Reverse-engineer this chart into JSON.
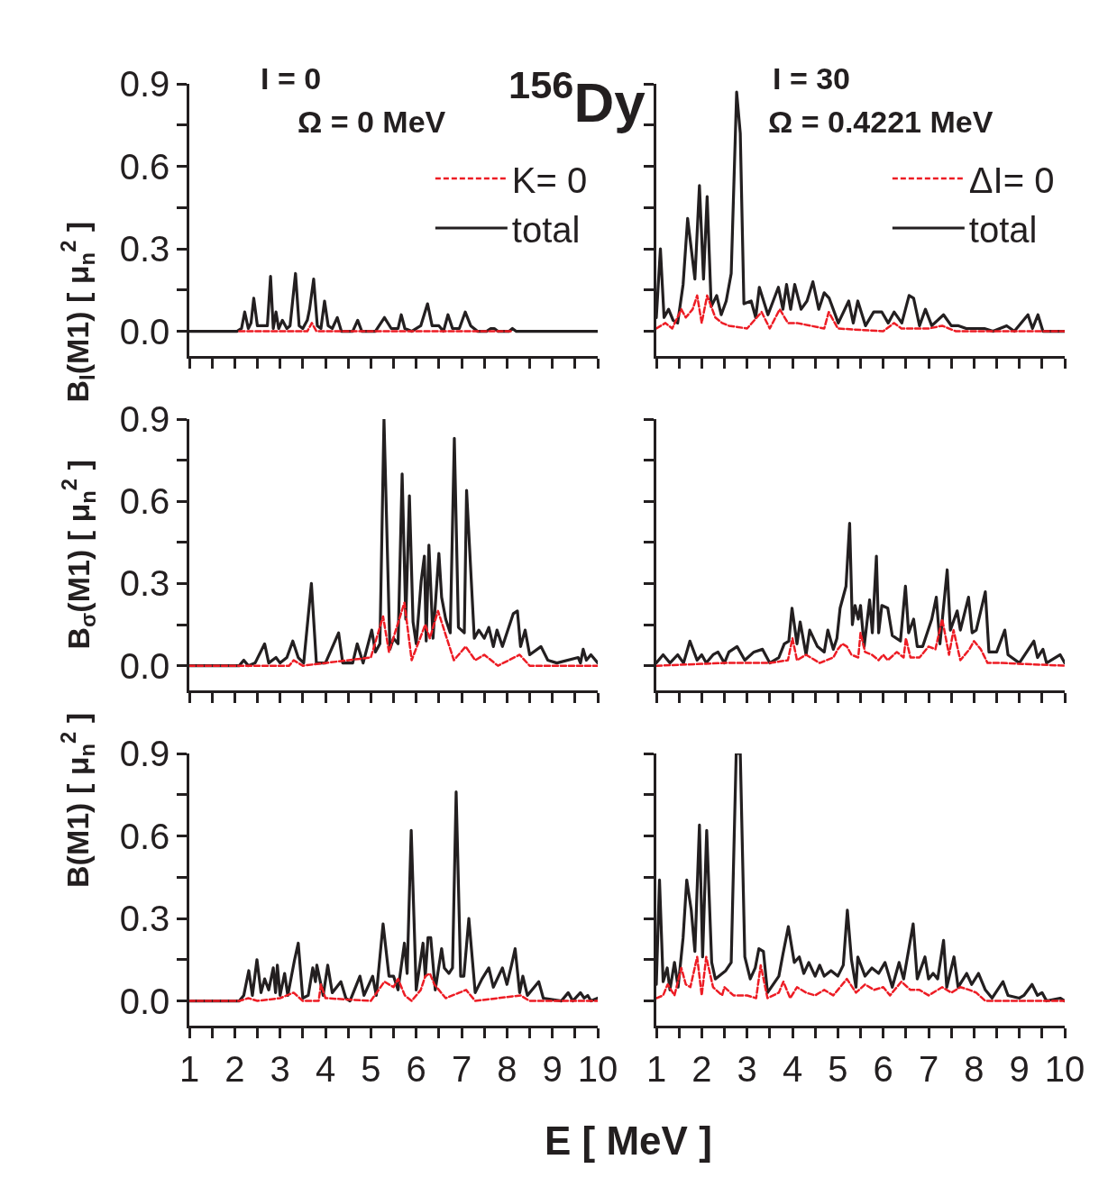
{
  "chart_data": [
    {
      "type": "line",
      "title": "$^{156}$Dy",
      "ylabel": "B$_{I}$(M1) [ μ$_{n}$$^{2}$ ]",
      "annotations": [
        "I = 0",
        "Ω = 0 MeV"
      ],
      "legend": "top right",
      "tick_labels": "y",
      "xlim": [
        1,
        10
      ],
      "xticks": [
        1,
        {
          "value": 1.5,
          "label": null
        },
        2,
        {
          "value": 2.5,
          "label": null
        },
        3,
        {
          "value": 3.5,
          "label": null
        },
        4,
        {
          "value": 4.5,
          "label": null
        },
        5,
        {
          "value": 5.5,
          "label": null
        },
        6,
        {
          "value": 6.5,
          "label": null
        },
        7,
        {
          "value": 7.5,
          "label": null
        },
        8,
        {
          "value": 8.5,
          "label": null
        },
        9,
        {
          "value": 9.5,
          "label": null
        },
        10
      ],
      "ylim": [
        -0.09,
        0.9
      ],
      "yticks": [
        {
          "value": 0,
          "label": "0.0"
        },
        {
          "value": 0.15,
          "label": null
        },
        0.3,
        {
          "value": 0.45,
          "label": null
        },
        0.6,
        {
          "value": 0.75,
          "label": null
        },
        0.9
      ],
      "series": [
        {
          "name": "K= 0",
          "color": "#ed1c24",
          "line_style": "dashed",
          "x": [
            2.1,
            3.6,
            3.7,
            3.8,
            8.1
          ],
          "values": [
            0,
            0,
            0.03,
            0,
            0
          ]
        },
        {
          "name": "total",
          "color": "#231f20",
          "line_style": "solid",
          "x": [
            1,
            2.05,
            2.15,
            2.22,
            2.3,
            2.36,
            2.42,
            2.5,
            2.6,
            2.72,
            2.79,
            2.85,
            2.91,
            2.97,
            3.05,
            3.15,
            3.22,
            3.34,
            3.42,
            3.5,
            3.6,
            3.65,
            3.74,
            3.82,
            3.9,
            3.98,
            4.06,
            4.15,
            4.26,
            4.35,
            4.6,
            4.71,
            4.8,
            5.1,
            5.3,
            5.45,
            5.6,
            5.67,
            5.75,
            5.9,
            6.1,
            6.25,
            6.35,
            6.5,
            6.6,
            6.7,
            6.8,
            6.95,
            7.08,
            7.2,
            7.35,
            7.55,
            7.65,
            7.72,
            7.8,
            8.05,
            8.12,
            8.2,
            10
          ],
          "values": [
            0,
            0,
            0.01,
            0.07,
            0.01,
            0.03,
            0.12,
            0.02,
            0.02,
            0.02,
            0.2,
            0.01,
            0.07,
            0.01,
            0.04,
            0.01,
            0.02,
            0.21,
            0.02,
            0.01,
            0.04,
            0.08,
            0.19,
            0.02,
            0.01,
            0.11,
            0.02,
            0.01,
            0.05,
            0,
            0,
            0.04,
            0,
            0,
            0.05,
            0.01,
            0.01,
            0.06,
            0.01,
            0,
            0.02,
            0.1,
            0.02,
            0.02,
            0,
            0.06,
            0.01,
            0.01,
            0.07,
            0.02,
            0,
            0,
            0.01,
            0.01,
            0,
            0,
            0.01,
            0,
            0
          ]
        }
      ]
    },
    {
      "type": "line",
      "annotations": [
        "I = 30",
        "Ω = 0.4221 MeV"
      ],
      "legend": "top right",
      "tick_labels": false,
      "xlim": [
        1,
        10
      ],
      "xticks": [
        1,
        {
          "value": 1.5,
          "label": null
        },
        2,
        {
          "value": 2.5,
          "label": null
        },
        3,
        {
          "value": 3.5,
          "label": null
        },
        4,
        {
          "value": 4.5,
          "label": null
        },
        5,
        {
          "value": 5.5,
          "label": null
        },
        6,
        {
          "value": 6.5,
          "label": null
        },
        7,
        {
          "value": 7.5,
          "label": null
        },
        8,
        {
          "value": 8.5,
          "label": null
        },
        9,
        {
          "value": 9.5,
          "label": null
        },
        10
      ],
      "ylim": [
        -0.09,
        0.9
      ],
      "yticks": [
        {
          "value": 0,
          "label": null
        },
        {
          "value": 0.15,
          "label": null
        },
        {
          "value": 0.3,
          "label": null
        },
        {
          "value": 0.45,
          "label": null
        },
        {
          "value": 0.6,
          "label": null
        },
        {
          "value": 0.75,
          "label": null
        },
        {
          "value": 0.9,
          "label": null
        }
      ],
      "series": [
        {
          "name": "ΔI= 0",
          "color": "#ed1c24",
          "line_style": "dashed",
          "x": [
            1,
            1.2,
            1.35,
            1.55,
            1.65,
            1.8,
            1.9,
            2.0,
            2.12,
            2.3,
            2.45,
            2.6,
            3.0,
            3.32,
            3.5,
            3.72,
            3.9,
            4.1,
            4.7,
            4.8,
            5.0,
            6.0,
            6.24,
            6.4,
            7.0,
            7.3,
            7.6,
            10
          ],
          "values": [
            0.01,
            0.03,
            0.01,
            0.08,
            0.05,
            0.08,
            0.13,
            0.03,
            0.13,
            0.05,
            0.03,
            0.02,
            0.01,
            0.07,
            0.01,
            0.08,
            0.03,
            0.03,
            0.01,
            0.07,
            0.01,
            0,
            0.03,
            0.01,
            0.01,
            0.02,
            0,
            0
          ]
        },
        {
          "name": "total",
          "color": "#231f20",
          "line_style": "solid",
          "x": [
            1,
            1.09,
            1.17,
            1.27,
            1.37,
            1.47,
            1.59,
            1.69,
            1.77,
            1.85,
            1.95,
            2.04,
            2.12,
            2.21,
            2.33,
            2.43,
            2.54,
            2.65,
            2.77,
            2.85,
            2.93,
            3.09,
            3.19,
            3.27,
            3.46,
            3.69,
            3.79,
            3.87,
            3.96,
            4.05,
            4.19,
            4.32,
            4.45,
            4.58,
            4.7,
            4.81,
            5.01,
            5.24,
            5.34,
            5.44,
            5.61,
            5.79,
            5.97,
            6.11,
            6.24,
            6.41,
            6.57,
            6.67,
            6.8,
            6.93,
            7.07,
            7.33,
            7.5,
            7.66,
            7.83,
            8.23,
            8.42,
            8.72,
            8.89,
            9.19,
            9.29,
            9.41,
            9.52,
            10
          ],
          "values": [
            0.05,
            0.3,
            0.05,
            0.08,
            0.04,
            0.03,
            0.17,
            0.41,
            0.3,
            0.19,
            0.53,
            0.19,
            0.49,
            0.09,
            0.13,
            0.06,
            0.11,
            0.21,
            0.87,
            0.72,
            0.1,
            0.11,
            0.05,
            0.16,
            0.06,
            0.16,
            0.08,
            0.17,
            0.08,
            0.17,
            0.08,
            0.11,
            0.18,
            0.08,
            0.14,
            0.12,
            0.03,
            0.11,
            0.03,
            0.11,
            0.02,
            0.07,
            0.07,
            0.03,
            0.07,
            0.03,
            0.13,
            0.12,
            0.02,
            0.08,
            0.02,
            0.06,
            0.02,
            0.02,
            0.01,
            0.01,
            0,
            0.02,
            0,
            0.06,
            0.01,
            0.06,
            0,
            0
          ]
        }
      ]
    },
    {
      "type": "line",
      "ylabel": "B$_{σ}$(M1) [ μ$_{n}$$^{2}$ ]",
      "tick_labels": "y",
      "xlim": [
        1,
        10
      ],
      "xticks": [
        1,
        {
          "value": 1.5,
          "label": null
        },
        2,
        {
          "value": 2.5,
          "label": null
        },
        3,
        {
          "value": 3.5,
          "label": null
        },
        4,
        {
          "value": 4.5,
          "label": null
        },
        5,
        {
          "value": 5.5,
          "label": null
        },
        6,
        {
          "value": 6.5,
          "label": null
        },
        7,
        {
          "value": 7.5,
          "label": null
        },
        8,
        {
          "value": 8.5,
          "label": null
        },
        9,
        {
          "value": 9.5,
          "label": null
        },
        10
      ],
      "ylim": [
        -0.09,
        0.9
      ],
      "yticks": [
        {
          "value": 0,
          "label": "0.0"
        },
        {
          "value": 0.15,
          "label": null
        },
        0.3,
        {
          "value": 0.45,
          "label": null
        },
        0.6,
        {
          "value": 0.75,
          "label": null
        },
        0.9
      ],
      "series": [
        {
          "color": "#ed1c24",
          "line_style": "dashed",
          "x": [
            1,
            3.2,
            3.3,
            3.5,
            5.0,
            5.27,
            5.4,
            5.74,
            5.9,
            6.2,
            6.3,
            6.48,
            6.83,
            7.09,
            7.3,
            7.5,
            7.8,
            8.28,
            8.5,
            10
          ],
          "values": [
            0,
            0,
            0.02,
            0,
            0.03,
            0.18,
            0.05,
            0.23,
            0.02,
            0.15,
            0.1,
            0.2,
            0.02,
            0.07,
            0.02,
            0.04,
            0,
            0.04,
            0,
            0
          ]
        },
        {
          "color": "#231f20",
          "line_style": "solid",
          "x": [
            1,
            2.1,
            2.2,
            2.3,
            2.45,
            2.66,
            2.75,
            2.91,
            3.0,
            3.15,
            3.28,
            3.4,
            3.52,
            3.69,
            3.8,
            4.0,
            4.29,
            4.38,
            4.6,
            4.7,
            4.83,
            5.02,
            5.1,
            5.2,
            5.29,
            5.42,
            5.5,
            5.6,
            5.69,
            5.77,
            5.85,
            5.93,
            6.0,
            6.11,
            6.18,
            6.22,
            6.28,
            6.37,
            6.5,
            6.56,
            6.65,
            6.75,
            6.84,
            6.93,
            7.06,
            7.11,
            7.28,
            7.38,
            7.5,
            7.6,
            7.7,
            7.78,
            7.9,
            8.14,
            8.23,
            8.3,
            8.4,
            8.5,
            8.75,
            8.9,
            9.1,
            9.57,
            9.62,
            9.68,
            9.75,
            9.85,
            10
          ],
          "values": [
            0,
            0,
            0.02,
            0,
            0.01,
            0.08,
            0.01,
            0.03,
            0.01,
            0.03,
            0.09,
            0.03,
            0.01,
            0.3,
            0.01,
            0.01,
            0.12,
            0.01,
            0.01,
            0.08,
            0.01,
            0.13,
            0.05,
            0.08,
            0.9,
            0.06,
            0.1,
            0.08,
            0.7,
            0.17,
            0.62,
            0.16,
            0.08,
            0.31,
            0.4,
            0.09,
            0.44,
            0.1,
            0.41,
            0.25,
            0.17,
            0.12,
            0.83,
            0.14,
            0.12,
            0.64,
            0.1,
            0.13,
            0.1,
            0.14,
            0.07,
            0.13,
            0.07,
            0.19,
            0.2,
            0.07,
            0.13,
            0.04,
            0.07,
            0.02,
            0.01,
            0.03,
            0.01,
            0.06,
            0.02,
            0.04,
            0.01
          ]
        }
      ]
    },
    {
      "type": "line",
      "tick_labels": false,
      "xlim": [
        1,
        10
      ],
      "xticks": [
        1,
        {
          "value": 1.5,
          "label": null
        },
        2,
        {
          "value": 2.5,
          "label": null
        },
        3,
        {
          "value": 3.5,
          "label": null
        },
        4,
        {
          "value": 4.5,
          "label": null
        },
        5,
        {
          "value": 5.5,
          "label": null
        },
        6,
        {
          "value": 6.5,
          "label": null
        },
        7,
        {
          "value": 7.5,
          "label": null
        },
        8,
        {
          "value": 8.5,
          "label": null
        },
        9,
        {
          "value": 9.5,
          "label": null
        },
        10
      ],
      "ylim": [
        -0.09,
        0.9
      ],
      "yticks": [
        {
          "value": 0,
          "label": null
        },
        {
          "value": 0.15,
          "label": null
        },
        {
          "value": 0.3,
          "label": null
        },
        {
          "value": 0.45,
          "label": null
        },
        {
          "value": 0.6,
          "label": null
        },
        {
          "value": 0.75,
          "label": null
        },
        {
          "value": 0.9,
          "label": null
        }
      ],
      "series": [
        {
          "color": "#ed1c24",
          "line_style": "dashed",
          "x": [
            1,
            2.5,
            3.5,
            3.9,
            4.0,
            4.1,
            4.3,
            4.6,
            4.9,
            5.0,
            5.1,
            5.2,
            5.3,
            5.45,
            5.5,
            5.6,
            5.75,
            5.9,
            6.0,
            6.1,
            6.3,
            6.45,
            6.5,
            6.6,
            6.8,
            7.0,
            7.15,
            7.3,
            7.45,
            7.55,
            7.7,
            7.9,
            8.0,
            8.15,
            8.3,
            8.6,
            10
          ],
          "values": [
            0,
            0.01,
            0.01,
            0.02,
            0.1,
            0.02,
            0.04,
            0.01,
            0.03,
            0.06,
            0.08,
            0.07,
            0.04,
            0.03,
            0.12,
            0.05,
            0.04,
            0.02,
            0.04,
            0.02,
            0.05,
            0.03,
            0.1,
            0.03,
            0.03,
            0.07,
            0.06,
            0.17,
            0.04,
            0.13,
            0.02,
            0.06,
            0.09,
            0.06,
            0.01,
            0.01,
            0
          ]
        },
        {
          "color": "#231f20",
          "line_style": "solid",
          "x": [
            1,
            1.15,
            1.3,
            1.47,
            1.6,
            1.74,
            1.9,
            2.0,
            2.1,
            2.25,
            2.36,
            2.5,
            2.6,
            2.78,
            2.95,
            3.15,
            3.34,
            3.5,
            3.7,
            3.82,
            3.92,
            3.99,
            4.1,
            4.17,
            4.3,
            4.38,
            4.55,
            4.7,
            4.78,
            4.9,
            4.98,
            5.05,
            5.18,
            5.26,
            5.32,
            5.38,
            5.45,
            5.5,
            5.58,
            5.7,
            5.76,
            5.85,
            5.9,
            5.97,
            6.1,
            6.2,
            6.38,
            6.49,
            6.56,
            6.67,
            6.75,
            6.87,
            7.07,
            7.17,
            7.25,
            7.41,
            7.48,
            7.63,
            7.7,
            7.88,
            7.96,
            8.05,
            8.25,
            8.33,
            8.5,
            8.68,
            8.75,
            9.0,
            9.32,
            9.4,
            9.52,
            9.6,
            9.9,
            10
          ],
          "values": [
            0.01,
            0.04,
            0.01,
            0.04,
            0.01,
            0.09,
            0.02,
            0.04,
            0.01,
            0.04,
            0.05,
            0.01,
            0.05,
            0.07,
            0.02,
            0.05,
            0.06,
            0.01,
            0.03,
            0.08,
            0.09,
            0.21,
            0.08,
            0.16,
            0.04,
            0.13,
            0.07,
            0.05,
            0.13,
            0.06,
            0.1,
            0.21,
            0.29,
            0.52,
            0.15,
            0.22,
            0.17,
            0.22,
            0.07,
            0.24,
            0.12,
            0.4,
            0.12,
            0.22,
            0.21,
            0.11,
            0.09,
            0.29,
            0.12,
            0.17,
            0.07,
            0.07,
            0.17,
            0.25,
            0.08,
            0.35,
            0.13,
            0.2,
            0.13,
            0.25,
            0.12,
            0.13,
            0.27,
            0.05,
            0.05,
            0.13,
            0.04,
            0.01,
            0.09,
            0.03,
            0.06,
            0.01,
            0.04,
            0.01
          ]
        }
      ]
    },
    {
      "type": "line",
      "ylabel": "B(M1) [ μ$_{n}$$^{2}$ ]",
      "xlabel": "E [ MeV ]",
      "xlim": [
        1,
        10
      ],
      "xticks": [
        1,
        {
          "value": 1.5,
          "label": null
        },
        2,
        {
          "value": 2.5,
          "label": null
        },
        3,
        {
          "value": 3.5,
          "label": null
        },
        4,
        {
          "value": 4.5,
          "label": null
        },
        5,
        {
          "value": 5.5,
          "label": null
        },
        6,
        {
          "value": 6.5,
          "label": null
        },
        7,
        {
          "value": 7.5,
          "label": null
        },
        8,
        {
          "value": 8.5,
          "label": null
        },
        9,
        {
          "value": 9.5,
          "label": null
        },
        10
      ],
      "ylim": [
        -0.09,
        0.9
      ],
      "yticks": [
        {
          "value": 0,
          "label": "0.0"
        },
        {
          "value": 0.15,
          "label": null
        },
        0.3,
        {
          "value": 0.45,
          "label": null
        },
        0.6,
        {
          "value": 0.75,
          "label": null
        },
        0.9
      ],
      "series": [
        {
          "color": "#ed1c24",
          "line_style": "dashed",
          "x": [
            1,
            2.1,
            2.3,
            2.5,
            3.0,
            3.3,
            3.5,
            3.85,
            3.9,
            4.0,
            5.0,
            5.3,
            5.5,
            5.6,
            5.75,
            5.9,
            6.1,
            6.2,
            6.3,
            6.4,
            6.5,
            6.65,
            7.1,
            7.3,
            8.3,
            8.5,
            10
          ],
          "values": [
            0,
            0,
            0.01,
            0,
            0.01,
            0.03,
            0,
            0,
            0.06,
            0.01,
            0,
            0.07,
            0.05,
            0.08,
            0.02,
            0,
            0.04,
            0.09,
            0.1,
            0.06,
            0.04,
            0.01,
            0.04,
            0,
            0.02,
            0,
            0
          ]
        },
        {
          "color": "#231f20",
          "line_style": "solid",
          "x": [
            1,
            2.1,
            2.2,
            2.31,
            2.39,
            2.49,
            2.58,
            2.66,
            2.75,
            2.85,
            2.9,
            2.94,
            3.0,
            3.1,
            3.17,
            3.32,
            3.4,
            3.5,
            3.62,
            3.72,
            3.78,
            3.81,
            3.95,
            4.05,
            4.15,
            4.34,
            4.45,
            4.54,
            4.76,
            4.85,
            5.04,
            5.12,
            5.27,
            5.4,
            5.5,
            5.6,
            5.74,
            5.8,
            5.89,
            6.0,
            6.15,
            6.2,
            6.26,
            6.32,
            6.42,
            6.56,
            6.62,
            6.72,
            6.8,
            6.88,
            6.98,
            7.05,
            7.16,
            7.3,
            7.45,
            7.6,
            7.7,
            7.9,
            8.0,
            8.1,
            8.18,
            8.28,
            8.35,
            8.45,
            8.7,
            8.8,
            9.2,
            9.35,
            9.45,
            9.62,
            9.7,
            9.78,
            9.85,
            10
          ],
          "values": [
            0,
            0,
            0.02,
            0.11,
            0.02,
            0.15,
            0.03,
            0.08,
            0.04,
            0.12,
            0.03,
            0.13,
            0.02,
            0.1,
            0.02,
            0.15,
            0.21,
            0.01,
            0.02,
            0.12,
            0.07,
            0.13,
            0.02,
            0.13,
            0.03,
            0.07,
            0.01,
            0,
            0.09,
            0.02,
            0.09,
            0.02,
            0.28,
            0.09,
            0.09,
            0.04,
            0.21,
            0.1,
            0.62,
            0.04,
            0.21,
            0.09,
            0.23,
            0.23,
            0.04,
            0.19,
            0.12,
            0.1,
            0.12,
            0.76,
            0.09,
            0.09,
            0.3,
            0.03,
            0.08,
            0.12,
            0.05,
            0.12,
            0.06,
            0.13,
            0.19,
            0.03,
            0.09,
            0.02,
            0.07,
            0.01,
            0,
            0.03,
            0,
            0.03,
            0.01,
            0.02,
            0,
            0.01
          ]
        }
      ]
    },
    {
      "type": "line",
      "tick_labels": "x",
      "xlim": [
        1,
        10
      ],
      "xticks": [
        1,
        {
          "value": 1.5,
          "label": null
        },
        2,
        {
          "value": 2.5,
          "label": null
        },
        3,
        {
          "value": 3.5,
          "label": null
        },
        4,
        {
          "value": 4.5,
          "label": null
        },
        5,
        {
          "value": 5.5,
          "label": null
        },
        6,
        {
          "value": 6.5,
          "label": null
        },
        7,
        {
          "value": 7.5,
          "label": null
        },
        8,
        {
          "value": 8.5,
          "label": null
        },
        9,
        {
          "value": 9.5,
          "label": null
        },
        10
      ],
      "ylim": [
        -0.09,
        0.9
      ],
      "yticks": [
        {
          "value": 0,
          "label": null
        },
        {
          "value": 0.15,
          "label": null
        },
        {
          "value": 0.3,
          "label": null
        },
        {
          "value": 0.45,
          "label": null
        },
        {
          "value": 0.6,
          "label": null
        },
        {
          "value": 0.75,
          "label": null
        },
        {
          "value": 0.9,
          "label": null
        }
      ],
      "series": [
        {
          "color": "#ed1c24",
          "line_style": "dashed",
          "x": [
            1,
            1.15,
            1.25,
            1.4,
            1.55,
            1.65,
            1.75,
            1.9,
            2.0,
            2.1,
            2.25,
            2.45,
            2.5,
            2.7,
            3.0,
            3.2,
            3.3,
            3.45,
            3.7,
            3.8,
            3.95,
            4.1,
            4.3,
            4.5,
            4.7,
            4.9,
            5.0,
            5.2,
            5.4,
            5.6,
            5.8,
            6.0,
            6.15,
            6.4,
            6.6,
            6.8,
            7.0,
            7.3,
            7.5,
            7.7,
            7.9,
            8.05,
            8.25,
            10
          ],
          "values": [
            0.01,
            0.02,
            0.06,
            0.02,
            0.12,
            0.06,
            0.05,
            0.16,
            0.02,
            0.16,
            0.05,
            0.02,
            0.05,
            0.02,
            0.02,
            0.01,
            0.13,
            0.01,
            0.03,
            0.07,
            0.01,
            0.05,
            0.03,
            0.02,
            0.04,
            0.02,
            0.04,
            0.08,
            0.03,
            0.06,
            0.04,
            0.05,
            0.02,
            0.07,
            0.04,
            0.04,
            0.02,
            0.05,
            0.03,
            0.05,
            0.04,
            0.03,
            0,
            0
          ]
        },
        {
          "color": "#231f20",
          "line_style": "solid",
          "x": [
            1,
            1.07,
            1.15,
            1.24,
            1.3,
            1.4,
            1.48,
            1.59,
            1.67,
            1.77,
            1.85,
            1.95,
            2.02,
            2.11,
            2.22,
            2.3,
            2.53,
            2.65,
            2.76,
            2.85,
            2.95,
            3.07,
            3.18,
            3.26,
            3.36,
            3.45,
            3.7,
            3.79,
            3.91,
            4.04,
            4.15,
            4.25,
            4.36,
            4.5,
            4.6,
            4.7,
            4.85,
            5.0,
            5.12,
            5.21,
            5.3,
            5.4,
            5.44,
            5.6,
            5.75,
            5.9,
            6.04,
            6.2,
            6.35,
            6.45,
            6.66,
            6.75,
            6.92,
            7.0,
            7.1,
            7.2,
            7.33,
            7.4,
            7.56,
            7.65,
            7.84,
            7.95,
            8.1,
            8.25,
            8.4,
            8.64,
            8.75,
            9.0,
            9.1,
            9.28,
            9.4,
            9.5,
            9.6,
            9.9,
            10
          ],
          "values": [
            0.06,
            0.44,
            0.07,
            0.12,
            0.04,
            0.14,
            0.05,
            0.23,
            0.44,
            0.33,
            0.18,
            0.64,
            0.16,
            0.62,
            0.14,
            0.08,
            0.11,
            0.14,
            0.9,
            0.9,
            0.16,
            0.08,
            0.12,
            0.19,
            0.18,
            0.03,
            0.09,
            0.17,
            0.27,
            0.14,
            0.16,
            0.1,
            0.14,
            0.09,
            0.13,
            0.09,
            0.11,
            0.09,
            0.13,
            0.33,
            0.15,
            0.05,
            0.16,
            0.09,
            0.12,
            0.1,
            0.14,
            0.05,
            0.14,
            0.08,
            0.28,
            0.08,
            0.16,
            0.08,
            0.1,
            0.08,
            0.22,
            0.05,
            0.16,
            0.05,
            0.1,
            0.06,
            0.1,
            0.04,
            0.01,
            0.07,
            0.02,
            0.01,
            0.02,
            0.06,
            0.02,
            0.03,
            0,
            0.01,
            0
          ]
        }
      ]
    }
  ]
}
